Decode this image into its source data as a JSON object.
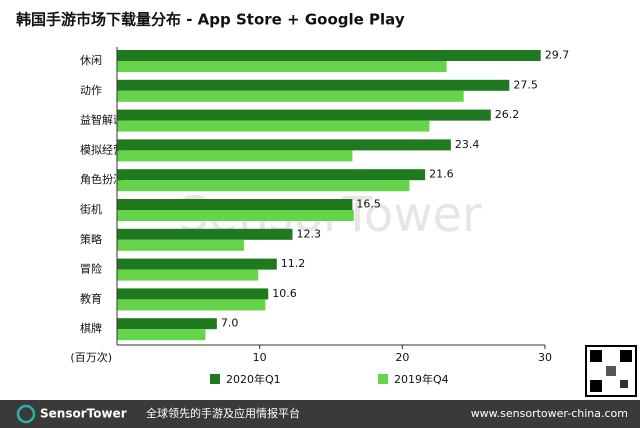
{
  "chart_data": {
    "type": "hbar",
    "title": "韩国手游市场下载量分布 - App Store + Google Play",
    "x_label": "(百万次)",
    "categories": [
      "休闲",
      "动作",
      "益智解谜",
      "模拟经营",
      "角色扮演",
      "街机",
      "策略",
      "冒险",
      "教育",
      "棋牌"
    ],
    "series": [
      {
        "name": "2020年Q1",
        "color": "#1f7a1f",
        "values": [
          29.7,
          27.5,
          26.2,
          23.4,
          21.6,
          16.5,
          12.3,
          11.2,
          10.6,
          7.0
        ],
        "value_labels": [
          "29.7",
          "27.5",
          "26.2",
          "23.4",
          "21.6",
          "16.5",
          "12.3",
          "11.2",
          "10.6",
          "7.0"
        ]
      },
      {
        "name": "2019年Q4",
        "color": "#66d44a",
        "values": [
          23.1,
          24.3,
          21.9,
          16.5,
          20.5,
          16.6,
          8.9,
          9.9,
          10.4,
          6.2
        ]
      }
    ],
    "xlim": [
      0,
      30
    ],
    "xticks": [
      10,
      20,
      30
    ],
    "watermark": "SensorTower",
    "footer": {
      "brand": "SensorTower",
      "slogan": "全球领先的手游及应用情报平台",
      "url": "www.sensortower-china.com"
    }
  }
}
